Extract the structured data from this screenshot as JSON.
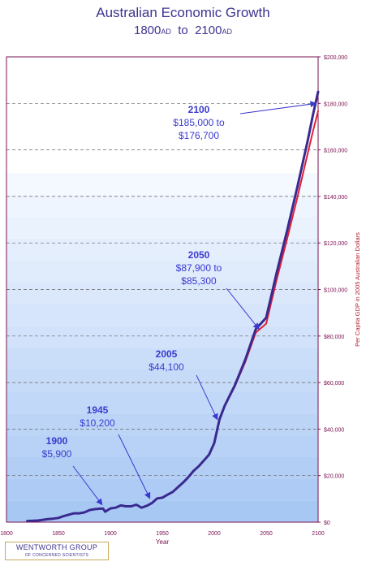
{
  "header": {
    "title": "Australian Economic Growth",
    "subtitle_start": "1800",
    "subtitle_end": "2100",
    "era": "AD",
    "connector": "to"
  },
  "logo": {
    "line1": "WENTWORTH GROUP",
    "line2": "OF CONCERNED SCIENTISTS"
  },
  "colors": {
    "line_main": "#3a2a8f",
    "line_alt": "#e0203a",
    "annotation": "#3a3ad0",
    "axis": "#7a1050",
    "band_low": "#a8c8f4",
    "band_high": "#f4f8ff"
  },
  "chart_data": {
    "type": "line",
    "xlabel": "Year",
    "ylabel": "Per Capita GDP in 2005 Australian Dollars",
    "xlim": [
      1800,
      2100
    ],
    "ylim": [
      0,
      200000
    ],
    "x_ticks": [
      "1800",
      "1850",
      "1900",
      "1950",
      "2000",
      "2050",
      "2100"
    ],
    "y_ticks": [
      "$0",
      "$20,000",
      "$40,000",
      "$60,000",
      "$80,000",
      "$100,000",
      "$120,000",
      "$140,000",
      "$160,000",
      "$180,000",
      "$200,000"
    ],
    "grid": "horizontal dashed",
    "series": [
      {
        "x": [
          1820,
          1830,
          1835,
          1840,
          1845,
          1850,
          1855,
          1860,
          1865,
          1870,
          1875,
          1880,
          1885,
          1890,
          1893,
          1895,
          1900,
          1905,
          1910,
          1915,
          1920,
          1925,
          1930,
          1935,
          1940,
          1945,
          1950,
          1955,
          1960,
          1965,
          1970,
          1975,
          1980,
          1985,
          1990,
          1995,
          2000,
          2003,
          2005,
          2010,
          2020,
          2030,
          2040,
          2050,
          2060,
          2070,
          2080,
          2090,
          2095,
          2100
        ],
        "values": [
          500,
          700,
          1000,
          1300,
          1500,
          1800,
          2600,
          3200,
          3800,
          3800,
          4200,
          5200,
          5600,
          5800,
          5800,
          4500,
          5900,
          6200,
          7200,
          6800,
          6800,
          7500,
          6200,
          7000,
          8200,
          10200,
          10500,
          11800,
          13000,
          15000,
          17000,
          19300,
          22000,
          24000,
          26500,
          29000,
          34000,
          40000,
          44100,
          50000,
          59000,
          70000,
          83000,
          87900,
          107000,
          125000,
          144000,
          164000,
          175000,
          185000
        ]
      },
      {
        "x": [
          2005,
          2010,
          2020,
          2030,
          2040,
          2050,
          2060,
          2070,
          2080,
          2090,
          2095,
          2100
        ],
        "values": [
          44100,
          49800,
          58500,
          69000,
          81500,
          85300,
          104000,
          121500,
          139500,
          158500,
          168000,
          176700
        ]
      }
    ],
    "annotations": [
      {
        "year": "2100",
        "value": "$185,000 to",
        "value2": "$176,700",
        "x": 2098,
        "y": 180000
      },
      {
        "year": "2050",
        "value": "$87,900 to",
        "value2": "$85,300",
        "x": 2043,
        "y": 83000
      },
      {
        "year": "2005",
        "value": "$44,100",
        "x": 2003,
        "y": 44100
      },
      {
        "year": "1945",
        "value": "$10,200",
        "x": 1938,
        "y": 10200
      },
      {
        "year": "1900",
        "value": "$5,900",
        "x": 1892,
        "y": 7500
      }
    ]
  }
}
